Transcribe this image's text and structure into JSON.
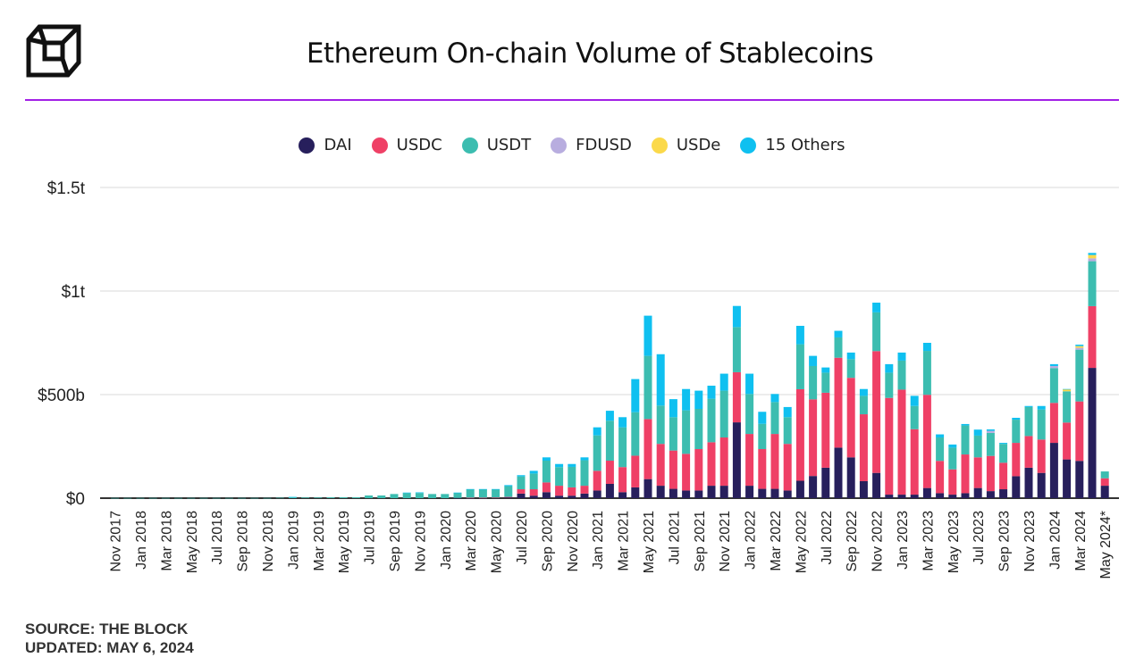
{
  "title": "Ethereum On-chain Volume of Stablecoins",
  "source": "SOURCE: THE BLOCK",
  "updated": "UPDATED: MAY 6, 2024",
  "logo": "The Block",
  "accent_color": "#a21fe6",
  "chart_data": {
    "type": "bar",
    "stacked": true,
    "title": "Ethereum On-chain Volume of Stablecoins",
    "xlabel": "",
    "ylabel": "",
    "ylim": [
      0,
      1500
    ],
    "y_unit": "billion USD",
    "y_ticks": [
      {
        "v": 0,
        "label": "$0"
      },
      {
        "v": 500,
        "label": "$500b"
      },
      {
        "v": 1000,
        "label": "$1t"
      },
      {
        "v": 1500,
        "label": "$1.5t"
      }
    ],
    "grid": true,
    "legend_position": "top",
    "categories": [
      "Nov 2017",
      "Dec 2017",
      "Jan 2018",
      "Feb 2018",
      "Mar 2018",
      "Apr 2018",
      "May 2018",
      "Jun 2018",
      "Jul 2018",
      "Aug 2018",
      "Sep 2018",
      "Oct 2018",
      "Nov 2018",
      "Dec 2018",
      "Jan 2019",
      "Feb 2019",
      "Mar 2019",
      "Apr 2019",
      "May 2019",
      "Jun 2019",
      "Jul 2019",
      "Aug 2019",
      "Sep 2019",
      "Oct 2019",
      "Nov 2019",
      "Dec 2019",
      "Jan 2020",
      "Feb 2020",
      "Mar 2020",
      "Apr 2020",
      "May 2020",
      "Jun 2020",
      "Jul 2020",
      "Aug 2020",
      "Sep 2020",
      "Oct 2020",
      "Nov 2020",
      "Dec 2020",
      "Jan 2021",
      "Feb 2021",
      "Mar 2021",
      "Apr 2021",
      "May 2021",
      "Jun 2021",
      "Jul 2021",
      "Aug 2021",
      "Sep 2021",
      "Oct 2021",
      "Nov 2021",
      "Dec 2021",
      "Jan 2022",
      "Feb 2022",
      "Mar 2022",
      "Apr 2022",
      "May 2022",
      "Jun 2022",
      "Jul 2022",
      "Aug 2022",
      "Sep 2022",
      "Oct 2022",
      "Nov 2022",
      "Dec 2022",
      "Jan 2023",
      "Feb 2023",
      "Mar 2023",
      "Apr 2023",
      "May 2023",
      "Jun 2023",
      "Jul 2023",
      "Aug 2023",
      "Sep 2023",
      "Oct 2023",
      "Nov 2023",
      "Dec 2023",
      "Jan 2024",
      "Feb 2024",
      "Mar 2024",
      "Apr 2024",
      "May 2024*"
    ],
    "series": [
      {
        "name": "DAI",
        "color": "#271f5c",
        "values": [
          0,
          0,
          0,
          0,
          0,
          0,
          0,
          0,
          0,
          0,
          0,
          0,
          0,
          0,
          0,
          0,
          0,
          0,
          0,
          0,
          0,
          0,
          0,
          0,
          0,
          0,
          0,
          1,
          1,
          1,
          2,
          4,
          22,
          12,
          29,
          12,
          12,
          22,
          37,
          69,
          29,
          52,
          92,
          60,
          45,
          37,
          37,
          60,
          60,
          366,
          60,
          45,
          45,
          37,
          84,
          107,
          147,
          244,
          197,
          82,
          122,
          17,
          17,
          17,
          49,
          24,
          17,
          24,
          49,
          34,
          43,
          106,
          147,
          122,
          267,
          187,
          180,
          629,
          60
        ]
      },
      {
        "name": "USDC",
        "color": "#ef4066",
        "values": [
          0,
          0,
          0,
          0,
          0,
          0,
          0,
          0,
          0,
          0,
          0,
          0,
          0,
          0,
          0,
          0,
          0,
          0,
          0,
          0,
          0,
          0,
          0,
          0,
          0,
          0,
          0,
          0,
          1,
          1,
          1,
          2,
          21,
          31,
          47,
          48,
          40,
          38,
          95,
          112,
          121,
          153,
          290,
          202,
          185,
          177,
          200,
          210,
          233,
          242,
          250,
          192,
          265,
          225,
          442,
          370,
          362,
          434,
          384,
          323,
          588,
          467,
          507,
          316,
          450,
          156,
          122,
          187,
          148,
          170,
          128,
          161,
          153,
          161,
          193,
          178,
          287,
          298,
          36
        ]
      },
      {
        "name": "USDT",
        "color": "#3cbdb0",
        "values": [
          1,
          1,
          1,
          1,
          1,
          1,
          1,
          1,
          1,
          1,
          1,
          1,
          1,
          2,
          5,
          3,
          3,
          4,
          4,
          4,
          13,
          13,
          20,
          25,
          25,
          20,
          20,
          25,
          41,
          41,
          40,
          52,
          62,
          76,
          105,
          90,
          99,
          123,
          171,
          193,
          192,
          210,
          305,
          185,
          161,
          210,
          194,
          210,
          226,
          218,
          193,
          122,
          154,
          129,
          217,
          161,
          97,
          98,
          90,
          89,
          187,
          122,
          140,
          112,
          212,
          113,
          105,
          140,
          105,
          111,
          91,
          112,
          140,
          145,
          168,
          151,
          250,
          217,
          33
        ]
      },
      {
        "name": "FDUSD",
        "color": "#b8addf",
        "values": [
          0,
          0,
          0,
          0,
          0,
          0,
          0,
          0,
          0,
          0,
          0,
          0,
          0,
          0,
          0,
          0,
          0,
          0,
          0,
          0,
          0,
          0,
          0,
          0,
          0,
          0,
          0,
          0,
          0,
          0,
          0,
          0,
          0,
          0,
          0,
          0,
          0,
          0,
          0,
          0,
          0,
          0,
          0,
          0,
          0,
          0,
          0,
          0,
          0,
          0,
          0,
          0,
          0,
          0,
          0,
          0,
          0,
          0,
          0,
          0,
          0,
          0,
          0,
          0,
          0,
          0,
          0,
          0,
          0,
          10,
          0,
          0,
          0,
          0,
          10,
          0,
          9,
          14,
          0
        ]
      },
      {
        "name": "USDe",
        "color": "#fbd94a",
        "values": [
          0,
          0,
          0,
          0,
          0,
          0,
          0,
          0,
          0,
          0,
          0,
          0,
          0,
          0,
          0,
          0,
          0,
          0,
          0,
          0,
          0,
          0,
          0,
          0,
          0,
          0,
          0,
          0,
          0,
          0,
          0,
          0,
          0,
          0,
          0,
          0,
          0,
          0,
          0,
          0,
          0,
          0,
          0,
          0,
          0,
          0,
          0,
          0,
          0,
          0,
          0,
          0,
          0,
          0,
          0,
          0,
          0,
          0,
          0,
          0,
          0,
          0,
          0,
          0,
          0,
          0,
          0,
          0,
          0,
          0,
          0,
          0,
          0,
          0,
          0,
          10,
          8,
          16,
          0
        ]
      },
      {
        "name": "15 Others",
        "color": "#0fc0f0",
        "values": [
          0,
          0,
          0,
          0,
          0,
          0,
          0,
          0,
          0,
          0,
          0,
          0,
          0,
          0,
          1,
          0,
          0,
          0,
          0,
          0,
          0,
          0,
          0,
          2,
          3,
          0,
          0,
          1,
          1,
          1,
          1,
          5,
          6,
          13,
          16,
          15,
          14,
          14,
          39,
          48,
          49,
          160,
          194,
          248,
          87,
          103,
          88,
          63,
          82,
          102,
          98,
          58,
          39,
          49,
          89,
          49,
          25,
          32,
          32,
          33,
          47,
          41,
          39,
          49,
          39,
          15,
          15,
          7,
          29,
          7,
          5,
          9,
          5,
          17,
          9,
          1,
          7,
          10,
          0
        ]
      }
    ]
  }
}
